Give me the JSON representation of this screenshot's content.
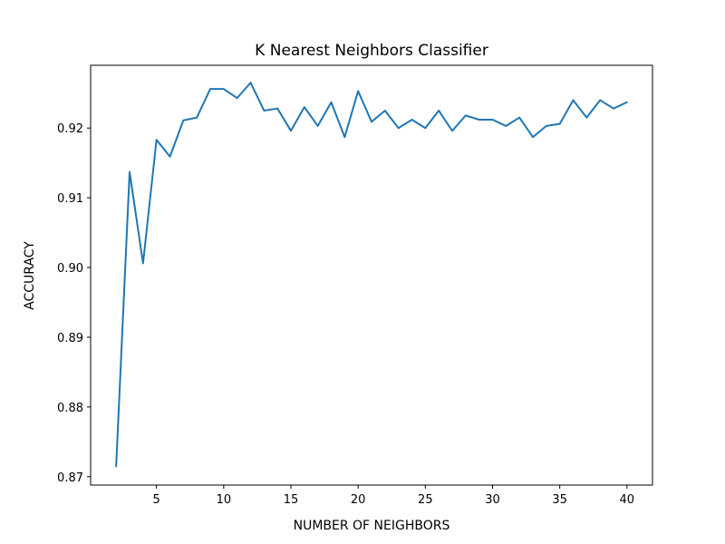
{
  "chart_data": {
    "type": "line",
    "title": "K Nearest Neighbors Classifier",
    "xlabel": "NUMBER OF NEIGHBORS",
    "ylabel": "ACCURACY",
    "xlim": [
      0.1,
      41.9
    ],
    "ylim": [
      0.8688,
      0.929
    ],
    "xticks": [
      5,
      10,
      15,
      20,
      25,
      30,
      35,
      40
    ],
    "xtick_labels": [
      "5",
      "10",
      "15",
      "20",
      "25",
      "30",
      "35",
      "40"
    ],
    "yticks": [
      0.87,
      0.88,
      0.89,
      0.9,
      0.91,
      0.92
    ],
    "ytick_labels": [
      "0.87",
      "0.88",
      "0.89",
      "0.90",
      "0.91",
      "0.92"
    ],
    "grid": false,
    "color": "#1f77b4",
    "series": [
      {
        "x": [
          2,
          3,
          4,
          5,
          6,
          7,
          8,
          9,
          10,
          11,
          12,
          13,
          14,
          15,
          16,
          17,
          18,
          19,
          20,
          21,
          22,
          23,
          24,
          25,
          26,
          27,
          28,
          29,
          30,
          31,
          32,
          33,
          34,
          35,
          36,
          37,
          38,
          39,
          40
        ],
        "values": [
          0.8715,
          0.9137,
          0.9006,
          0.9183,
          0.9159,
          0.9211,
          0.9215,
          0.9256,
          0.9256,
          0.9243,
          0.9265,
          0.9225,
          0.9228,
          0.9196,
          0.923,
          0.9203,
          0.9237,
          0.9187,
          0.9253,
          0.9209,
          0.9225,
          0.92,
          0.9212,
          0.92,
          0.9225,
          0.9196,
          0.9218,
          0.9212,
          0.9212,
          0.9203,
          0.9215,
          0.9187,
          0.9203,
          0.9206,
          0.924,
          0.9215,
          0.924,
          0.9228,
          0.9237
        ]
      }
    ]
  }
}
